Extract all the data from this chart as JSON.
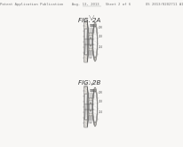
{
  "bg_color": "#f8f7f5",
  "header_text": "Patent Application Publication    Aug. 13, 2013   Sheet 2 of 6       US 2013/0202711 A1",
  "fig2a_label": "FIG. 2A",
  "fig2b_label": "FIG. 2B",
  "header_fontsize": 2.8,
  "label_fontsize": 5.0,
  "lc": "#444444",
  "lw": 0.28,
  "hatch_color": "#888888",
  "fill_light": "#e0ddd8",
  "fill_mid": "#c8c5bf",
  "fill_dark": "#aaa89f",
  "fill_white": "#f8f7f5"
}
